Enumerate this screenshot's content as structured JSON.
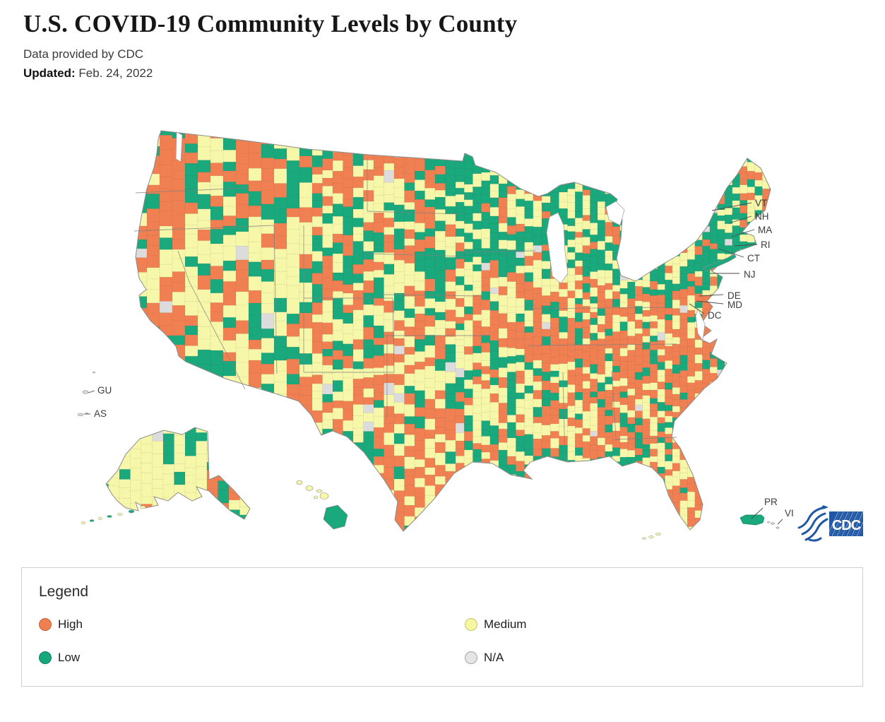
{
  "page": {
    "title": "U.S. COVID-19 Community Levels by County",
    "subtitle": "Data provided by CDC",
    "updated_label": "Updated:",
    "updated_date": " Feb. 24, 2022"
  },
  "legend": {
    "title": "Legend",
    "items": [
      {
        "label": "High",
        "color": "#F08052",
        "border": "#C65E33"
      },
      {
        "label": "Medium",
        "color": "#F6F6A1",
        "border": "#C6C66E"
      },
      {
        "label": "Low",
        "color": "#17A77C",
        "border": "#0E7F5E"
      },
      {
        "label": "N/A",
        "color": "#E5E5E5",
        "border": "#A5A5A5"
      }
    ]
  },
  "map": {
    "state_labels": [
      "VT",
      "NH",
      "MA",
      "RI",
      "CT",
      "NJ",
      "DE",
      "MD",
      "DC",
      "GU",
      "AS",
      "PR",
      "VI"
    ],
    "colors": {
      "high": "#F08052",
      "medium": "#F7F7AA",
      "low": "#1AA87D",
      "na": "#DCDCDC"
    },
    "cdc_logo_text": "CDC"
  },
  "chart_data": {
    "type": "choropleth-map",
    "title": "U.S. COVID-19 Community Levels by County",
    "geography": "United States counties, including AK, HI, DC, PR, VI, GU, AS",
    "source_note": "Data provided by CDC",
    "updated": "Feb. 24, 2022",
    "categories": [
      {
        "label": "High",
        "color": "#F08052"
      },
      {
        "label": "Medium",
        "color": "#F6F6A1"
      },
      {
        "label": "Low",
        "color": "#17A77C"
      },
      {
        "label": "N/A",
        "color": "#E5E5E5"
      }
    ],
    "annotated_regions": [
      "VT",
      "NH",
      "MA",
      "RI",
      "CT",
      "NJ",
      "DE",
      "MD",
      "DC",
      "GU",
      "AS",
      "PR",
      "VI"
    ],
    "visual_summary": {
      "high_dominant_areas": [
        "Kentucky/Tennessee/Appalachia belt",
        "Carolinas and Georgia",
        "south and west Texas",
        "Pacific coast (OR/N. CA)",
        "northern Maine",
        "Florida gulf side"
      ],
      "low_dominant_areas": [
        "Upper Midwest (WI/MI)",
        "New York / Pennsylvania / southern New England",
        "New Jersey, Delaware, Maryland",
        "Puerto Rico"
      ],
      "medium_dominant_areas": [
        "Great Basin (NV/UT)",
        "Great Plains",
        "most of Alaska",
        "east Florida coast"
      ]
    },
    "legend_position": "bottom box with two columns"
  }
}
